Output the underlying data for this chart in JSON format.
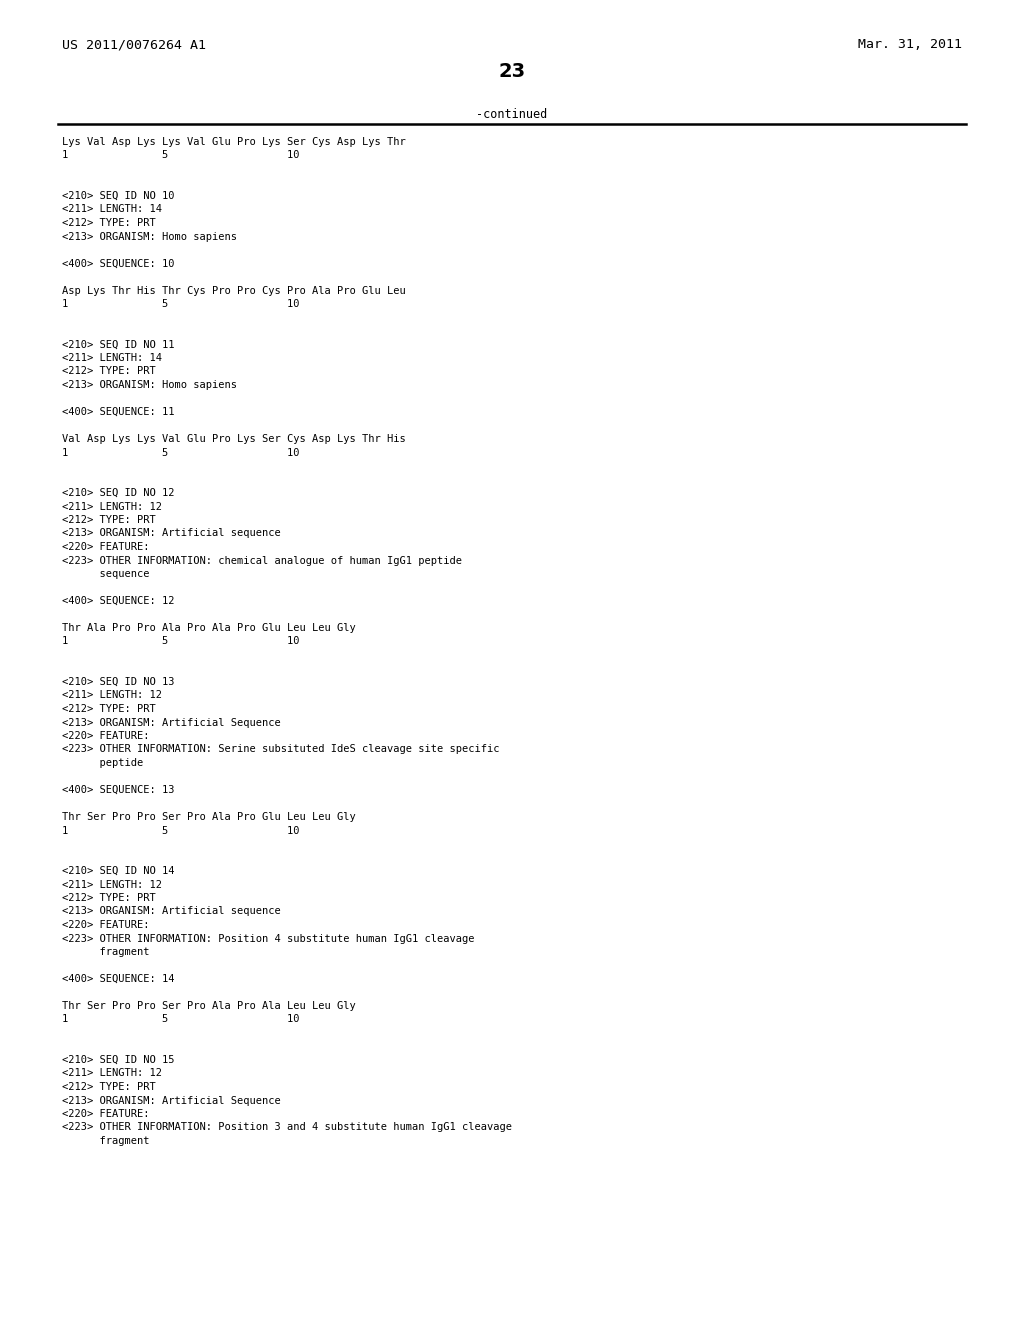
{
  "header_left": "US 2011/0076264 A1",
  "header_right": "Mar. 31, 2011",
  "page_number": "23",
  "continued_label": "-continued",
  "background_color": "#ffffff",
  "text_color": "#000000",
  "mono_font_size": 7.5,
  "header_font_size": 9.5,
  "page_num_font_size": 14,
  "content_lines": [
    "Lys Val Asp Lys Lys Val Glu Pro Lys Ser Cys Asp Lys Thr",
    "1               5                   10",
    "",
    "",
    "<210> SEQ ID NO 10",
    "<211> LENGTH: 14",
    "<212> TYPE: PRT",
    "<213> ORGANISM: Homo sapiens",
    "",
    "<400> SEQUENCE: 10",
    "",
    "Asp Lys Thr His Thr Cys Pro Pro Cys Pro Ala Pro Glu Leu",
    "1               5                   10",
    "",
    "",
    "<210> SEQ ID NO 11",
    "<211> LENGTH: 14",
    "<212> TYPE: PRT",
    "<213> ORGANISM: Homo sapiens",
    "",
    "<400> SEQUENCE: 11",
    "",
    "Val Asp Lys Lys Val Glu Pro Lys Ser Cys Asp Lys Thr His",
    "1               5                   10",
    "",
    "",
    "<210> SEQ ID NO 12",
    "<211> LENGTH: 12",
    "<212> TYPE: PRT",
    "<213> ORGANISM: Artificial sequence",
    "<220> FEATURE:",
    "<223> OTHER INFORMATION: chemical analogue of human IgG1 peptide",
    "      sequence",
    "",
    "<400> SEQUENCE: 12",
    "",
    "Thr Ala Pro Pro Ala Pro Ala Pro Glu Leu Leu Gly",
    "1               5                   10",
    "",
    "",
    "<210> SEQ ID NO 13",
    "<211> LENGTH: 12",
    "<212> TYPE: PRT",
    "<213> ORGANISM: Artificial Sequence",
    "<220> FEATURE:",
    "<223> OTHER INFORMATION: Serine subsituted IdeS cleavage site specific",
    "      peptide",
    "",
    "<400> SEQUENCE: 13",
    "",
    "Thr Ser Pro Pro Ser Pro Ala Pro Glu Leu Leu Gly",
    "1               5                   10",
    "",
    "",
    "<210> SEQ ID NO 14",
    "<211> LENGTH: 12",
    "<212> TYPE: PRT",
    "<213> ORGANISM: Artificial sequence",
    "<220> FEATURE:",
    "<223> OTHER INFORMATION: Position 4 substitute human IgG1 cleavage",
    "      fragment",
    "",
    "<400> SEQUENCE: 14",
    "",
    "Thr Ser Pro Pro Ser Pro Ala Pro Ala Leu Leu Gly",
    "1               5                   10",
    "",
    "",
    "<210> SEQ ID NO 15",
    "<211> LENGTH: 12",
    "<212> TYPE: PRT",
    "<213> ORGANISM: Artificial Sequence",
    "<220> FEATURE:",
    "<223> OTHER INFORMATION: Position 3 and 4 substitute human IgG1 cleavage",
    "      fragment"
  ]
}
